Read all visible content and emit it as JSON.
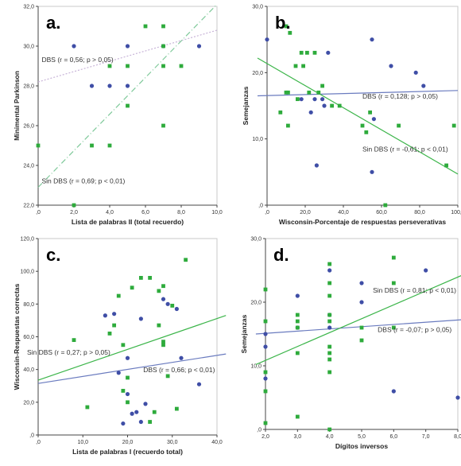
{
  "chart_data": [
    {
      "panel": "a.",
      "type": "scatter",
      "xlabel": "Lista de palabras II (total recuerdo)",
      "ylabel": "Minimental Parkinson",
      "xlim": [
        0,
        10
      ],
      "ylim": [
        22,
        32
      ],
      "xticks": [
        0,
        2,
        4,
        6,
        8,
        10
      ],
      "yticks": [
        22,
        24,
        26,
        28,
        30,
        32
      ],
      "tick_decimals": 1,
      "series": [
        {
          "name": "DBS",
          "color": "#3f4ea6",
          "marker": "circle",
          "points": [
            [
              2,
              30
            ],
            [
              3,
              28
            ],
            [
              4,
              28
            ],
            [
              5,
              30
            ],
            [
              5,
              28
            ],
            [
              7,
              30
            ],
            [
              9,
              30
            ]
          ]
        },
        {
          "name": "Sin DBS",
          "color": "#2eab3c",
          "marker": "square",
          "points": [
            [
              0,
              25
            ],
            [
              2,
              22
            ],
            [
              3,
              25
            ],
            [
              4,
              25
            ],
            [
              4,
              29
            ],
            [
              5,
              27
            ],
            [
              5,
              29
            ],
            [
              6,
              31
            ],
            [
              7,
              31
            ],
            [
              7,
              30
            ],
            [
              7,
              29
            ],
            [
              7,
              26
            ],
            [
              8,
              29
            ]
          ]
        }
      ],
      "fit_lines": [
        {
          "series": "DBS",
          "from": [
            0,
            28.2
          ],
          "to": [
            10,
            30.8
          ],
          "color": "#c8b4d8",
          "dash": "2,2"
        },
        {
          "series": "Sin DBS",
          "from": [
            0,
            22.9
          ],
          "to": [
            10,
            32.1
          ],
          "color": "#7fc99a",
          "dash": "7,3,1,3"
        }
      ],
      "annotations": [
        {
          "text": "DBS (r = 0,56; p > 0,05)",
          "x": 0.2,
          "y": 29.2
        },
        {
          "text": "Sin DBS (r = 0,69; p < 0,01)",
          "x": 0.2,
          "y": 23.1
        }
      ]
    },
    {
      "panel": "b.",
      "type": "scatter",
      "xlabel": "Wisconsin-Porcentaje de respuestas perseverativas",
      "ylabel": "Semejanzas",
      "xlim": [
        0,
        100
      ],
      "ylim": [
        0,
        30
      ],
      "xticks": [
        0,
        20,
        40,
        60,
        80,
        100
      ],
      "yticks": [
        0,
        10,
        20,
        30
      ],
      "tick_decimals": 1,
      "series": [
        {
          "name": "DBS",
          "color": "#3f4ea6",
          "marker": "circle",
          "points": [
            [
              0,
              25
            ],
            [
              18,
              16
            ],
            [
              23,
              14
            ],
            [
              25,
              16
            ],
            [
              26,
              6
            ],
            [
              29,
              16
            ],
            [
              30,
              15
            ],
            [
              32,
              23
            ],
            [
              55,
              25
            ],
            [
              56,
              13
            ],
            [
              55,
              5
            ],
            [
              65,
              21
            ],
            [
              78,
              20
            ],
            [
              82,
              18
            ]
          ]
        },
        {
          "name": "Sin DBS",
          "color": "#2eab3c",
          "marker": "square",
          "points": [
            [
              7,
              14
            ],
            [
              10,
              27
            ],
            [
              10,
              17
            ],
            [
              11,
              17
            ],
            [
              11,
              12
            ],
            [
              12,
              26
            ],
            [
              15,
              21
            ],
            [
              16,
              16
            ],
            [
              18,
              23
            ],
            [
              19,
              21
            ],
            [
              21,
              23
            ],
            [
              22,
              17
            ],
            [
              25,
              23
            ],
            [
              27,
              17
            ],
            [
              29,
              18
            ],
            [
              34,
              15
            ],
            [
              38,
              15
            ],
            [
              50,
              12
            ],
            [
              52,
              11
            ],
            [
              54,
              14
            ],
            [
              62,
              0
            ],
            [
              69,
              12
            ],
            [
              94,
              6
            ],
            [
              98,
              12
            ]
          ]
        }
      ],
      "fit_lines": [
        {
          "series": "DBS",
          "from": [
            -5,
            16.5
          ],
          "to": [
            100,
            17.3
          ],
          "color": "#6a7bbf",
          "dash": ""
        },
        {
          "series": "Sin DBS",
          "from": [
            -5,
            22.2
          ],
          "to": [
            100,
            4.7
          ],
          "color": "#3cb54a",
          "dash": ""
        }
      ],
      "annotations": [
        {
          "text": "DBS (r = 0,128; p > 0,05)",
          "x": 50,
          "y": 16.1
        },
        {
          "text": "Sin DBS (r = -0,61; p < 0,01)",
          "x": 50,
          "y": 8.1
        }
      ]
    },
    {
      "panel": "c.",
      "type": "scatter",
      "xlabel": "Lista de palabras I (recuerdo total)",
      "ylabel": "Wisconsin-Respuestas correctas",
      "xlim": [
        0,
        40
      ],
      "ylim": [
        0,
        120
      ],
      "xticks": [
        0,
        10,
        20,
        30,
        40
      ],
      "yticks": [
        0,
        20,
        40,
        60,
        80,
        100,
        120
      ],
      "tick_decimals": 1,
      "series": [
        {
          "name": "DBS",
          "color": "#3f4ea6",
          "marker": "circle",
          "points": [
            [
              15,
              73
            ],
            [
              17,
              74
            ],
            [
              18,
              38
            ],
            [
              19,
              7
            ],
            [
              20,
              25
            ],
            [
              20,
              47
            ],
            [
              21,
              13
            ],
            [
              22,
              14
            ],
            [
              23,
              71
            ],
            [
              23,
              8
            ],
            [
              24,
              19
            ],
            [
              28,
              83
            ],
            [
              29,
              80
            ],
            [
              31,
              77
            ],
            [
              32,
              47
            ],
            [
              36,
              31
            ]
          ]
        },
        {
          "name": "Sin DBS",
          "color": "#2eab3c",
          "marker": "square",
          "points": [
            [
              8,
              58
            ],
            [
              11,
              17
            ],
            [
              16,
              62
            ],
            [
              17,
              67
            ],
            [
              18,
              85
            ],
            [
              19,
              55
            ],
            [
              19,
              27
            ],
            [
              20,
              35
            ],
            [
              20,
              20
            ],
            [
              21,
              90
            ],
            [
              23,
              96
            ],
            [
              25,
              96
            ],
            [
              25,
              8
            ],
            [
              26,
              14
            ],
            [
              27,
              67
            ],
            [
              27,
              88
            ],
            [
              28,
              91
            ],
            [
              28,
              57
            ],
            [
              28,
              55
            ],
            [
              29,
              36
            ],
            [
              30,
              79
            ],
            [
              31,
              16
            ],
            [
              33,
              107
            ]
          ]
        }
      ],
      "fit_lines": [
        {
          "series": "DBS",
          "from": [
            0,
            31.5
          ],
          "to": [
            42,
            49.5
          ],
          "color": "#6a7bbf",
          "dash": ""
        },
        {
          "series": "Sin DBS",
          "from": [
            0,
            33.5
          ],
          "to": [
            42,
            73
          ],
          "color": "#3cb54a",
          "dash": ""
        }
      ],
      "annotations": [
        {
          "text": "Sin DBS (r = 0,27; p > 0,05)",
          "x": -2.5,
          "y": 49
        },
        {
          "text": "DBS (r = 0,66; p < 0,01)",
          "x": 23.5,
          "y": 38.5
        }
      ]
    },
    {
      "panel": "d.",
      "type": "scatter",
      "xlabel": "Dígitos inversos",
      "ylabel": "Semejanzas",
      "xlim": [
        2,
        8
      ],
      "ylim": [
        0,
        30
      ],
      "xticks": [
        2,
        3,
        4,
        5,
        6,
        7,
        8
      ],
      "yticks": [
        0,
        10,
        20,
        30
      ],
      "tick_decimals": 1,
      "series": [
        {
          "name": "DBS",
          "color": "#3f4ea6",
          "marker": "circle",
          "points": [
            [
              2,
              8
            ],
            [
              2,
              13
            ],
            [
              2,
              15
            ],
            [
              3,
              16
            ],
            [
              3,
              21
            ],
            [
              4,
              16
            ],
            [
              4,
              18
            ],
            [
              4,
              25
            ],
            [
              5,
              20
            ],
            [
              5,
              23
            ],
            [
              6,
              6
            ],
            [
              7,
              25
            ],
            [
              8,
              5
            ]
          ]
        },
        {
          "name": "Sin DBS",
          "color": "#2eab3c",
          "marker": "square",
          "points": [
            [
              2,
              22
            ],
            [
              2,
              17
            ],
            [
              2,
              9
            ],
            [
              2,
              6
            ],
            [
              2,
              1
            ],
            [
              3,
              17
            ],
            [
              3,
              16
            ],
            [
              3,
              18
            ],
            [
              3,
              12
            ],
            [
              3,
              2
            ],
            [
              4,
              26
            ],
            [
              4,
              23
            ],
            [
              4,
              21
            ],
            [
              4,
              18
            ],
            [
              4,
              17
            ],
            [
              4,
              13
            ],
            [
              4,
              12
            ],
            [
              4,
              11
            ],
            [
              4,
              9
            ],
            [
              4,
              0
            ],
            [
              5,
              16
            ],
            [
              5,
              14
            ],
            [
              6,
              27
            ],
            [
              6,
              23
            ],
            [
              6,
              16
            ]
          ]
        }
      ],
      "fit_lines": [
        {
          "series": "DBS",
          "from": [
            1.7,
            15
          ],
          "to": [
            8.3,
            17.3
          ],
          "color": "#6a7bbf",
          "dash": ""
        },
        {
          "series": "Sin DBS",
          "from": [
            1.7,
            10.2
          ],
          "to": [
            8.3,
            24.6
          ],
          "color": "#3cb54a",
          "dash": ""
        }
      ],
      "annotations": [
        {
          "text": "Sin DBS (r = 0,81; p < 0,01)",
          "x": 5.35,
          "y": 21.5
        },
        {
          "text": "DBS (r = -0,07; p > 0,05)",
          "x": 5.5,
          "y": 15.3
        }
      ]
    }
  ]
}
